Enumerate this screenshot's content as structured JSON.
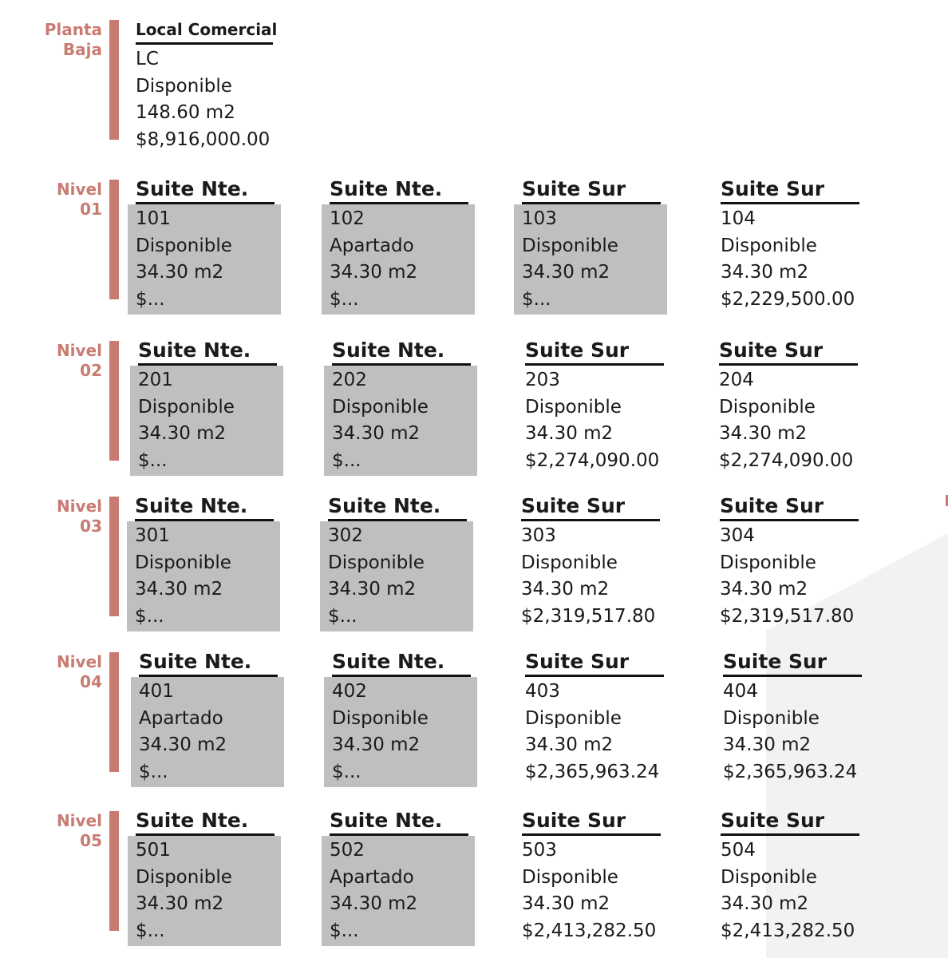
{
  "floors": [
    {
      "label": [
        "Planta",
        "Baja"
      ],
      "units": [
        {
          "type": "Local Comercial",
          "id": "LC",
          "status": "Disponible",
          "area": "148.60 m2",
          "price": "$8,916,000.00",
          "shaded": false
        }
      ]
    },
    {
      "label": [
        "Nivel",
        "01"
      ],
      "units": [
        {
          "type": "Suite Nte.",
          "id": "101",
          "status": "Disponible",
          "area": "34.30 m2",
          "price": "$...",
          "shaded": true
        },
        {
          "type": "Suite Nte.",
          "id": "102",
          "status": "Apartado",
          "area": "34.30 m2",
          "price": "$...",
          "shaded": true
        },
        {
          "type": "Suite Sur",
          "id": "103",
          "status": "Disponible",
          "area": "34.30 m2",
          "price": "$...",
          "shaded": true
        },
        {
          "type": "Suite Sur",
          "id": "104",
          "status": "Disponible",
          "area": "34.30 m2",
          "price": "$2,229,500.00",
          "shaded": false
        }
      ]
    },
    {
      "label": [
        "Nivel",
        "02"
      ],
      "units": [
        {
          "type": "Suite Nte.",
          "id": "201",
          "status": "Disponible",
          "area": "34.30 m2",
          "price": "$...",
          "shaded": true
        },
        {
          "type": "Suite Nte.",
          "id": "202",
          "status": "Disponible",
          "area": "34.30 m2",
          "price": "$...",
          "shaded": true
        },
        {
          "type": "Suite Sur",
          "id": "203",
          "status": "Disponible",
          "area": "34.30 m2",
          "price": "$2,274,090.00",
          "shaded": false
        },
        {
          "type": "Suite Sur",
          "id": "204",
          "status": "Disponible",
          "area": "34.30 m2",
          "price": "$2,274,090.00",
          "shaded": false
        }
      ]
    },
    {
      "label": [
        "Nivel",
        "03"
      ],
      "units": [
        {
          "type": "Suite Nte.",
          "id": "301",
          "status": "Disponible",
          "area": "34.30 m2",
          "price": "$...",
          "shaded": true
        },
        {
          "type": "Suite Nte.",
          "id": "302",
          "status": "Disponible",
          "area": "34.30 m2",
          "price": "$...",
          "shaded": true
        },
        {
          "type": "Suite Sur",
          "id": "303",
          "status": "Disponible",
          "area": "34.30 m2",
          "price": "$2,319,517.80",
          "shaded": false
        },
        {
          "type": "Suite Sur",
          "id": "304",
          "status": "Disponible",
          "area": "34.30 m2",
          "price": "$2,319,517.80",
          "shaded": false
        }
      ]
    },
    {
      "label": [
        "Nivel",
        "04"
      ],
      "units": [
        {
          "type": "Suite Nte.",
          "id": "401",
          "status": "Apartado",
          "area": "34.30 m2",
          "price": "$...",
          "shaded": true
        },
        {
          "type": "Suite Nte.",
          "id": "402",
          "status": "Disponible",
          "area": "34.30 m2",
          "price": "$...",
          "shaded": true
        },
        {
          "type": "Suite Sur",
          "id": "403",
          "status": "Disponible",
          "area": "34.30 m2",
          "price": "$2,365,963.24",
          "shaded": false
        },
        {
          "type": "Suite Sur",
          "id": "404",
          "status": "Disponible",
          "area": "34.30 m2",
          "price": "$2,365,963.24",
          "shaded": false
        }
      ]
    },
    {
      "label": [
        "Nivel",
        "05"
      ],
      "units": [
        {
          "type": "Suite Nte.",
          "id": "501",
          "status": "Disponible",
          "area": "34.30 m2",
          "price": "$...",
          "shaded": true
        },
        {
          "type": "Suite Nte.",
          "id": "502",
          "status": "Apartado",
          "area": "34.30 m2",
          "price": "$...",
          "shaded": true
        },
        {
          "type": "Suite Sur",
          "id": "503",
          "status": "Disponible",
          "area": "34.30 m2",
          "price": "$2,413,282.50",
          "shaded": false
        },
        {
          "type": "Suite Sur",
          "id": "504",
          "status": "Disponible",
          "area": "34.30 m2",
          "price": "$2,413,282.50",
          "shaded": false
        }
      ]
    }
  ],
  "colors": {
    "accent": "#c97b72",
    "shaded": "#bfbfbf",
    "rule": "#111111",
    "background_shape": "#f2f2f2"
  }
}
